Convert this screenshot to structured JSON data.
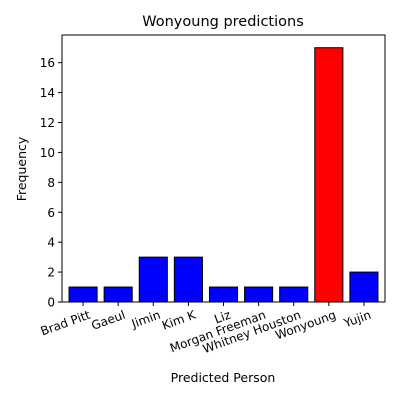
{
  "chart_data": {
    "type": "bar",
    "title": "Wonyoung predictions",
    "xlabel": "Predicted Person",
    "ylabel": "Frequency",
    "categories": [
      "Brad Pitt",
      "Gaeul",
      "Jimin",
      "Kim K",
      "Liz",
      "Morgan Freeman",
      "Whitney Houston",
      "Wonyoung",
      "Yujin"
    ],
    "values": [
      1,
      1,
      3,
      3,
      1,
      1,
      1,
      17,
      2
    ],
    "bar_colors": [
      "#0000ff",
      "#0000ff",
      "#0000ff",
      "#0000ff",
      "#0000ff",
      "#0000ff",
      "#0000ff",
      "#ff0000",
      "#0000ff"
    ],
    "edge_color": "#000000",
    "highlight": "Wonyoung",
    "ylim": [
      0,
      17.85
    ],
    "yticks": [
      0,
      2,
      4,
      6,
      8,
      10,
      12,
      14,
      16
    ],
    "xtick_rotation": 20,
    "grid": false,
    "legend": "none"
  }
}
